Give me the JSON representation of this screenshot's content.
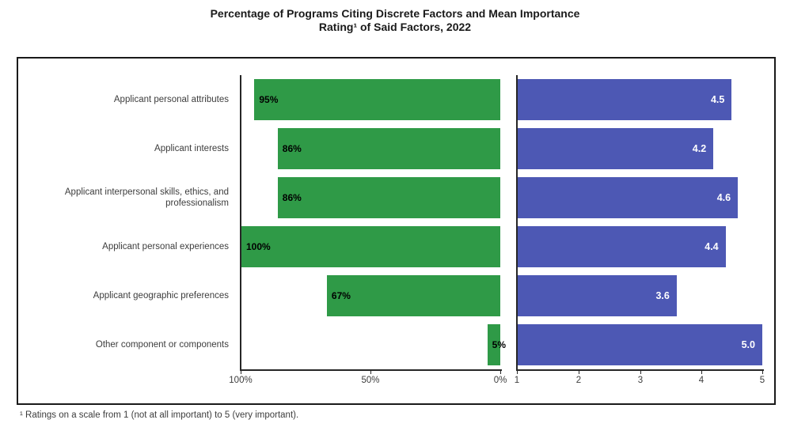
{
  "title": {
    "line1": "Percentage of Programs Citing Discrete Factors and Mean Importance",
    "line2": "Rating¹ of Said Factors, 2022"
  },
  "footnote": "¹ Ratings on a scale from 1 (not at all important) to 5 (very important).",
  "colors": {
    "green_bar": "#2f9a47",
    "blue_bar": "#4d58b4",
    "frame_border": "#1a1a1a",
    "axis": "#262626",
    "label_text": "#3d3d3d",
    "pct_value_text": "#000000",
    "rating_value_text": "#ffffff"
  },
  "chart_data": {
    "type": "bar",
    "orientation": "horizontal",
    "grid": false,
    "legend": "none",
    "title": "Percentage of Programs Citing Discrete Factors and Mean Importance Rating¹ of Said Factors, 2022",
    "categories": [
      "Applicant personal attributes",
      "Applicant interests",
      "Applicant interpersonal skills, ethics, and professionalism",
      "Applicant personal experiences",
      "Applicant geographic preferences",
      "Other component or components"
    ],
    "series": [
      {
        "name": "Percent of programs citing factor",
        "values": [
          95,
          86,
          86,
          100,
          67,
          5
        ],
        "labels": [
          "95%",
          "86%",
          "86%",
          "100%",
          "67%",
          "5%"
        ],
        "color": "#2f9a47",
        "axis_range": [
          0,
          100
        ],
        "axis_reversed": true,
        "ticks": [
          "100%",
          "50%",
          "0%"
        ]
      },
      {
        "name": "Mean importance rating",
        "values": [
          4.5,
          4.2,
          4.6,
          4.4,
          3.6,
          5.0
        ],
        "labels": [
          "4.5",
          "4.2",
          "4.6",
          "4.4",
          "3.6",
          "5.0"
        ],
        "color": "#4d58b4",
        "axis_range": [
          1,
          5
        ],
        "axis_reversed": false,
        "ticks": [
          "1",
          "2",
          "3",
          "4",
          "5"
        ]
      }
    ]
  }
}
